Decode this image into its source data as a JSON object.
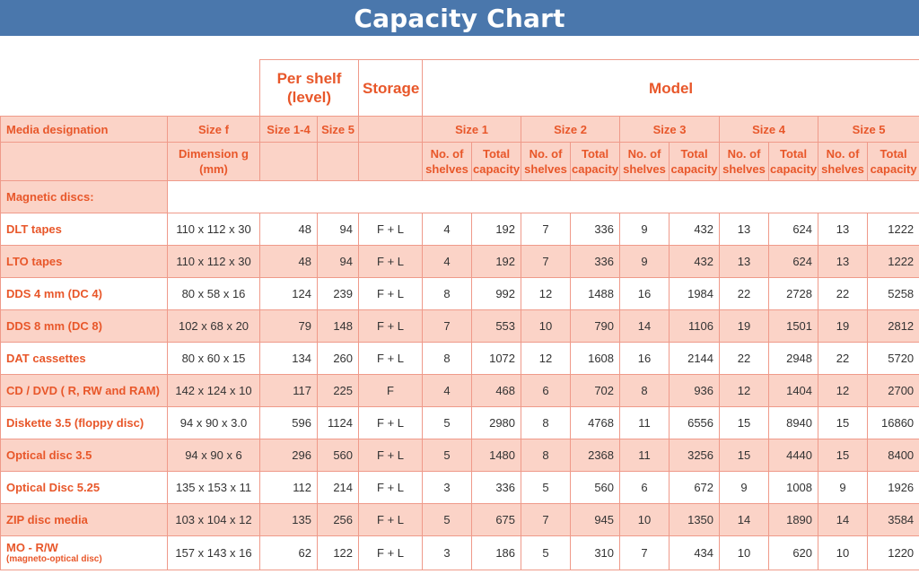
{
  "title": "Capacity Chart",
  "header": {
    "per_shelf": "Per shelf (level)",
    "storage": "Storage",
    "model": "Model",
    "media_designation": "Media designation",
    "size_f": "Size f",
    "size_1_4": "Size 1-4",
    "size_5": "Size 5",
    "dimension": "Dimension g (mm)",
    "model_sizes": [
      "Size 1",
      "Size 2",
      "Size 3",
      "Size 4",
      "Size 5"
    ],
    "no_of_shelves": "No. of shelves",
    "total_capacity": "Total capacity"
  },
  "group_label": "Magnetic discs:",
  "rows": [
    {
      "name": "DLT tapes",
      "dimension": "110 x 112 x 30",
      "s14": "48",
      "s5": "94",
      "storage": "F + L",
      "m": [
        "4",
        "192",
        "7",
        "336",
        "9",
        "432",
        "13",
        "624",
        "13",
        "1222"
      ]
    },
    {
      "name": "LTO tapes",
      "dimension": "110 x 112 x 30",
      "s14": "48",
      "s5": "94",
      "storage": "F + L",
      "m": [
        "4",
        "192",
        "7",
        "336",
        "9",
        "432",
        "13",
        "624",
        "13",
        "1222"
      ]
    },
    {
      "name": "DDS 4 mm (DC 4)",
      "dimension": "80 x 58 x 16",
      "s14": "124",
      "s5": "239",
      "storage": "F + L",
      "m": [
        "8",
        "992",
        "12",
        "1488",
        "16",
        "1984",
        "22",
        "2728",
        "22",
        "5258"
      ]
    },
    {
      "name": "DDS 8 mm (DC 8)",
      "dimension": "102 x 68 x 20",
      "s14": "79",
      "s5": "148",
      "storage": "F + L",
      "m": [
        "7",
        "553",
        "10",
        "790",
        "14",
        "1106",
        "19",
        "1501",
        "19",
        "2812"
      ]
    },
    {
      "name": "DAT cassettes",
      "dimension": "80 x 60 x 15",
      "s14": "134",
      "s5": "260",
      "storage": "F + L",
      "m": [
        "8",
        "1072",
        "12",
        "1608",
        "16",
        "2144",
        "22",
        "2948",
        "22",
        "5720"
      ]
    },
    {
      "name": "CD / DVD ( R, RW and RAM)",
      "dimension": "142 x 124 x 10",
      "s14": "117",
      "s5": "225",
      "storage": "F",
      "m": [
        "4",
        "468",
        "6",
        "702",
        "8",
        "936",
        "12",
        "1404",
        "12",
        "2700"
      ]
    },
    {
      "name": "Diskette 3.5 (floppy disc)",
      "dimension": "94 x 90 x 3.0",
      "s14": "596",
      "s5": "1124",
      "storage": "F + L",
      "m": [
        "5",
        "2980",
        "8",
        "4768",
        "11",
        "6556",
        "15",
        "8940",
        "15",
        "16860"
      ]
    },
    {
      "name": "Optical disc  3.5",
      "dimension": "94 x 90 x 6",
      "s14": "296",
      "s5": "560",
      "storage": "F + L",
      "m": [
        "5",
        "1480",
        "8",
        "2368",
        "11",
        "3256",
        "15",
        "4440",
        "15",
        "8400"
      ]
    },
    {
      "name": "Optical Disc  5.25",
      "dimension": "135 x 153 x 11",
      "s14": "112",
      "s5": "214",
      "storage": "F + L",
      "m": [
        "3",
        "336",
        "5",
        "560",
        "6",
        "672",
        "9",
        "1008",
        "9",
        "1926"
      ]
    },
    {
      "name": "ZIP disc media",
      "dimension": "103 x 104 x 12",
      "s14": "135",
      "s5": "256",
      "storage": "F + L",
      "m": [
        "5",
        "675",
        "7",
        "945",
        "10",
        "1350",
        "14",
        "1890",
        "14",
        "3584"
      ]
    },
    {
      "name": "MO - R/W",
      "name_sub": "(magneto-optical disc)",
      "dimension": "157 x 143 x 16",
      "s14": "62",
      "s5": "122",
      "storage": "F + L",
      "m": [
        "3",
        "186",
        "5",
        "310",
        "7",
        "434",
        "10",
        "620",
        "10",
        "1220"
      ]
    }
  ]
}
